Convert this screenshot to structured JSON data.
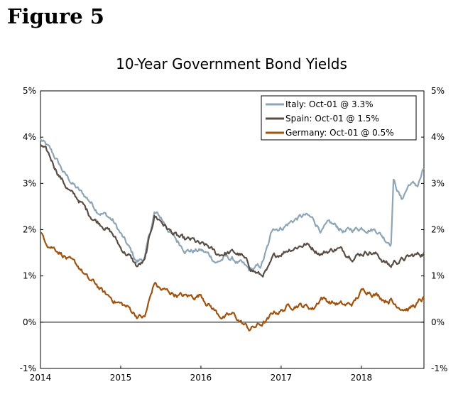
{
  "figure_label": "Figure 5",
  "chart_data": {
    "type": "line",
    "title": "10-Year Government Bond Yields",
    "xlabel": "",
    "ylabel": "",
    "x_ticks": [
      "2014",
      "2015",
      "2016",
      "2017",
      "2018"
    ],
    "x_range": [
      2014.0,
      2018.78
    ],
    "ylim": [
      -1,
      5
    ],
    "y_ticks_left": [
      "5%",
      "4%",
      "3%",
      "2%",
      "1%",
      "0%",
      "-1%"
    ],
    "y_ticks_right": [
      "5%",
      "4%",
      "3%",
      "2%",
      "1%",
      "0%",
      "-1%"
    ],
    "zero_line": true,
    "legend_position": "top-right",
    "series": [
      {
        "name": "Italy: Oct-01 @ 3.3%",
        "color": "#8EA5B6",
        "x": [
          2014.0,
          2014.1,
          2014.2,
          2014.3,
          2014.4,
          2014.5,
          2014.6,
          2014.7,
          2014.8,
          2014.9,
          2015.0,
          2015.1,
          2015.2,
          2015.3,
          2015.42,
          2015.5,
          2015.6,
          2015.7,
          2015.8,
          2015.9,
          2016.0,
          2016.1,
          2016.2,
          2016.3,
          2016.4,
          2016.5,
          2016.6,
          2016.75,
          2016.85,
          2016.9,
          2017.0,
          2017.1,
          2017.2,
          2017.3,
          2017.4,
          2017.5,
          2017.6,
          2017.7,
          2017.8,
          2017.9,
          2018.0,
          2018.1,
          2018.2,
          2018.3,
          2018.37,
          2018.4,
          2018.5,
          2018.6,
          2018.7,
          2018.78
        ],
        "values": [
          3.95,
          3.75,
          3.5,
          3.2,
          3.0,
          2.8,
          2.65,
          2.45,
          2.35,
          2.2,
          1.9,
          1.6,
          1.3,
          1.4,
          2.35,
          2.25,
          2.0,
          1.75,
          1.6,
          1.55,
          1.55,
          1.45,
          1.3,
          1.4,
          1.35,
          1.25,
          1.1,
          1.2,
          1.7,
          2.05,
          2.05,
          2.15,
          2.25,
          2.3,
          2.2,
          2.0,
          2.1,
          2.05,
          1.95,
          2.0,
          2.05,
          2.05,
          2.0,
          1.8,
          1.75,
          3.1,
          2.65,
          3.0,
          2.95,
          3.3
        ]
      },
      {
        "name": "Spain: Oct-01 @ 1.5%",
        "color": "#5A4D45",
        "x": [
          2014.0,
          2014.1,
          2014.2,
          2014.3,
          2014.4,
          2014.5,
          2014.6,
          2014.7,
          2014.8,
          2014.9,
          2015.0,
          2015.1,
          2015.2,
          2015.3,
          2015.42,
          2015.5,
          2015.6,
          2015.7,
          2015.8,
          2015.9,
          2016.0,
          2016.1,
          2016.2,
          2016.3,
          2016.4,
          2016.5,
          2016.6,
          2016.75,
          2016.85,
          2016.9,
          2017.0,
          2017.1,
          2017.2,
          2017.3,
          2017.4,
          2017.5,
          2017.6,
          2017.7,
          2017.8,
          2017.9,
          2018.0,
          2018.1,
          2018.2,
          2018.3,
          2018.37,
          2018.4,
          2018.5,
          2018.6,
          2018.7,
          2018.78
        ],
        "values": [
          3.85,
          3.6,
          3.3,
          3.0,
          2.75,
          2.6,
          2.35,
          2.2,
          2.1,
          1.9,
          1.6,
          1.45,
          1.2,
          1.3,
          2.3,
          2.2,
          2.0,
          1.85,
          1.75,
          1.75,
          1.65,
          1.6,
          1.45,
          1.5,
          1.5,
          1.45,
          1.2,
          1.0,
          1.15,
          1.35,
          1.5,
          1.6,
          1.65,
          1.7,
          1.6,
          1.5,
          1.55,
          1.6,
          1.5,
          1.45,
          1.5,
          1.55,
          1.45,
          1.3,
          1.2,
          1.3,
          1.35,
          1.4,
          1.45,
          1.5
        ]
      },
      {
        "name": "Germany: Oct-01 @ 0.5%",
        "color": "#A0530E",
        "x": [
          2014.0,
          2014.1,
          2014.2,
          2014.3,
          2014.4,
          2014.5,
          2014.6,
          2014.7,
          2014.8,
          2014.9,
          2015.0,
          2015.1,
          2015.2,
          2015.3,
          2015.42,
          2015.5,
          2015.6,
          2015.7,
          2015.8,
          2015.9,
          2016.0,
          2016.1,
          2016.2,
          2016.3,
          2016.4,
          2016.5,
          2016.6,
          2016.75,
          2016.85,
          2016.9,
          2017.0,
          2017.1,
          2017.2,
          2017.3,
          2017.4,
          2017.5,
          2017.6,
          2017.7,
          2017.8,
          2017.9,
          2018.0,
          2018.1,
          2018.2,
          2018.3,
          2018.37,
          2018.4,
          2018.5,
          2018.6,
          2018.7,
          2018.78
        ],
        "values": [
          1.9,
          1.7,
          1.6,
          1.45,
          1.25,
          1.15,
          0.9,
          0.8,
          0.6,
          0.5,
          0.4,
          0.3,
          0.15,
          0.1,
          0.85,
          0.7,
          0.65,
          0.6,
          0.55,
          0.55,
          0.6,
          0.4,
          0.2,
          0.1,
          0.15,
          0.0,
          -0.15,
          -0.05,
          0.05,
          0.2,
          0.25,
          0.35,
          0.4,
          0.35,
          0.3,
          0.55,
          0.45,
          0.4,
          0.35,
          0.4,
          0.65,
          0.7,
          0.6,
          0.5,
          0.5,
          0.4,
          0.35,
          0.3,
          0.4,
          0.5
        ]
      }
    ]
  }
}
